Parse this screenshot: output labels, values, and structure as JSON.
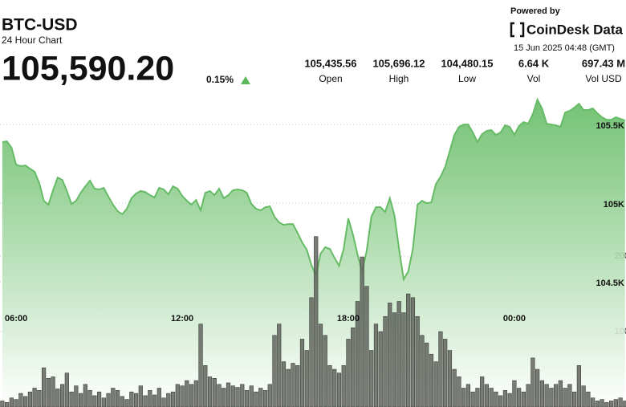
{
  "header": {
    "title": "BTC-USD",
    "subtitle": "24 Hour Chart",
    "price": "105,590.20",
    "change": "0.15%",
    "stats": [
      {
        "value": "105,435.56",
        "label": "Open"
      },
      {
        "value": "105,696.12",
        "label": "High"
      },
      {
        "value": "104,480.15",
        "label": "Low"
      },
      {
        "value": "6.64 K",
        "label": "Vol"
      },
      {
        "value": "697.43 M",
        "label": "Vol USD"
      }
    ],
    "powered_by": "Powered by",
    "brand": "CoinDesk Data",
    "timestamp": "15 Jun 2025 04:48 (GMT)"
  },
  "chart_data": {
    "type": "line",
    "x": [
      330,
      340,
      350,
      360,
      370,
      380,
      390,
      400,
      410,
      420,
      430,
      440,
      450,
      460,
      470,
      480,
      490,
      500,
      510,
      520,
      530,
      540,
      550,
      560,
      570,
      580,
      590,
      600,
      610,
      620,
      630,
      640,
      650,
      660,
      670,
      680,
      690,
      700,
      710,
      720,
      730,
      740,
      750,
      760,
      770,
      780,
      790,
      800,
      810,
      820,
      830,
      840,
      850,
      860,
      870,
      880,
      890,
      900,
      910,
      920,
      930,
      940,
      950,
      960,
      970,
      980,
      990,
      1000,
      1010,
      1020,
      1030,
      1040,
      1050,
      1060,
      1070,
      1080,
      1090,
      1100,
      1110,
      1120,
      1130,
      1140,
      1150,
      1160,
      1170,
      1180,
      1190,
      1200,
      1210,
      1220,
      1230,
      1240,
      1250,
      1260,
      1270,
      1280,
      1290,
      1300,
      1310,
      1320,
      1330,
      1340,
      1350,
      1360,
      1370,
      1380,
      1390,
      1400,
      1410,
      1420,
      1430,
      1440,
      1450,
      1460,
      1470,
      1480,
      1490,
      1500,
      1510,
      1520,
      1530,
      1540,
      1550,
      1560,
      1570,
      1580,
      1590,
      1600,
      1610,
      1620,
      1630,
      1640,
      1650,
      1660,
      1670,
      1680
    ],
    "series": [
      {
        "type": "area",
        "color": "#66bb66",
        "values": [
          105388,
          105393,
          105352,
          105245,
          105235,
          105240,
          105219,
          105199,
          105128,
          105015,
          104990,
          105082,
          105163,
          105148,
          105077,
          104995,
          105015,
          105066,
          105107,
          105143,
          105092,
          105087,
          105097,
          105041,
          104990,
          104949,
          104929,
          104964,
          105031,
          105061,
          105077,
          105071,
          105051,
          105036,
          105097,
          105087,
          105056,
          105107,
          105092,
          105046,
          105015,
          104990,
          105020,
          104954,
          105066,
          105077,
          105051,
          105092,
          105031,
          105051,
          105082,
          105087,
          105082,
          105066,
          104995,
          104964,
          104954,
          104974,
          104980,
          104913,
          104878,
          104862,
          104867,
          104867,
          104811,
          104750,
          104704,
          104607,
          104541,
          104679,
          104720,
          104709,
          104653,
          104602,
          104709,
          104903,
          104801,
          104674,
          104566,
          104699,
          104913,
          104974,
          104974,
          104944,
          105031,
          104924,
          104709,
          104516,
          104566,
          104709,
          104990,
          105015,
          105000,
          105005,
          105122,
          105168,
          105230,
          105332,
          105434,
          105485,
          105500,
          105500,
          105449,
          105388,
          105439,
          105459,
          105464,
          105434,
          105449,
          105495,
          105485,
          105434,
          105490,
          105515,
          105505,
          105566,
          105658,
          105602,
          105505,
          105500,
          105495,
          105485,
          105576,
          105587,
          105607,
          105632,
          105592,
          105592,
          105602,
          105571,
          105546,
          105530,
          105530,
          105546,
          105536,
          105525
        ]
      },
      {
        "type": "bar",
        "axis": "y2",
        "color": "#62655e",
        "values": [
          8,
          6,
          12,
          10,
          18,
          14,
          20,
          25,
          22,
          52,
          38,
          40,
          24,
          30,
          45,
          20,
          28,
          18,
          30,
          22,
          15,
          20,
          12,
          18,
          25,
          22,
          14,
          10,
          20,
          18,
          28,
          15,
          22,
          16,
          25,
          12,
          18,
          20,
          30,
          28,
          35,
          30,
          35,
          110,
          55,
          40,
          38,
          30,
          25,
          32,
          28,
          26,
          30,
          22,
          28,
          20,
          25,
          22,
          30,
          95,
          110,
          60,
          50,
          58,
          55,
          90,
          75,
          145,
          226,
          110,
          95,
          55,
          50,
          45,
          55,
          90,
          105,
          140,
          199,
          160,
          75,
          110,
          100,
          120,
          138,
          125,
          140,
          125,
          150,
          145,
          120,
          95,
          85,
          70,
          60,
          100,
          90,
          75,
          50,
          40,
          25,
          30,
          20,
          25,
          40,
          30,
          25,
          20,
          15,
          22,
          18,
          35,
          25,
          20,
          30,
          65,
          50,
          35,
          30,
          25,
          30,
          35,
          25,
          30,
          20,
          55,
          28,
          20,
          12,
          8,
          10,
          6,
          8,
          10,
          12,
          8
        ]
      }
    ],
    "xlim": [
      325,
      1682
    ],
    "xticks": [
      {
        "value": 360,
        "label": "06:00"
      },
      {
        "value": 720,
        "label": "12:00"
      },
      {
        "value": 1080,
        "label": "18:00"
      },
      {
        "value": 1440,
        "label": "00:00"
      }
    ],
    "ylim": [
      103704,
      105679
    ],
    "yticks": [
      {
        "value": 104500,
        "label": "104.5K"
      },
      {
        "value": 105000,
        "label": "105K"
      },
      {
        "value": 105500,
        "label": "105.5K"
      }
    ],
    "y2lim": [
      0,
      412
    ],
    "y2ticks": [
      100,
      200
    ],
    "grid": true
  }
}
